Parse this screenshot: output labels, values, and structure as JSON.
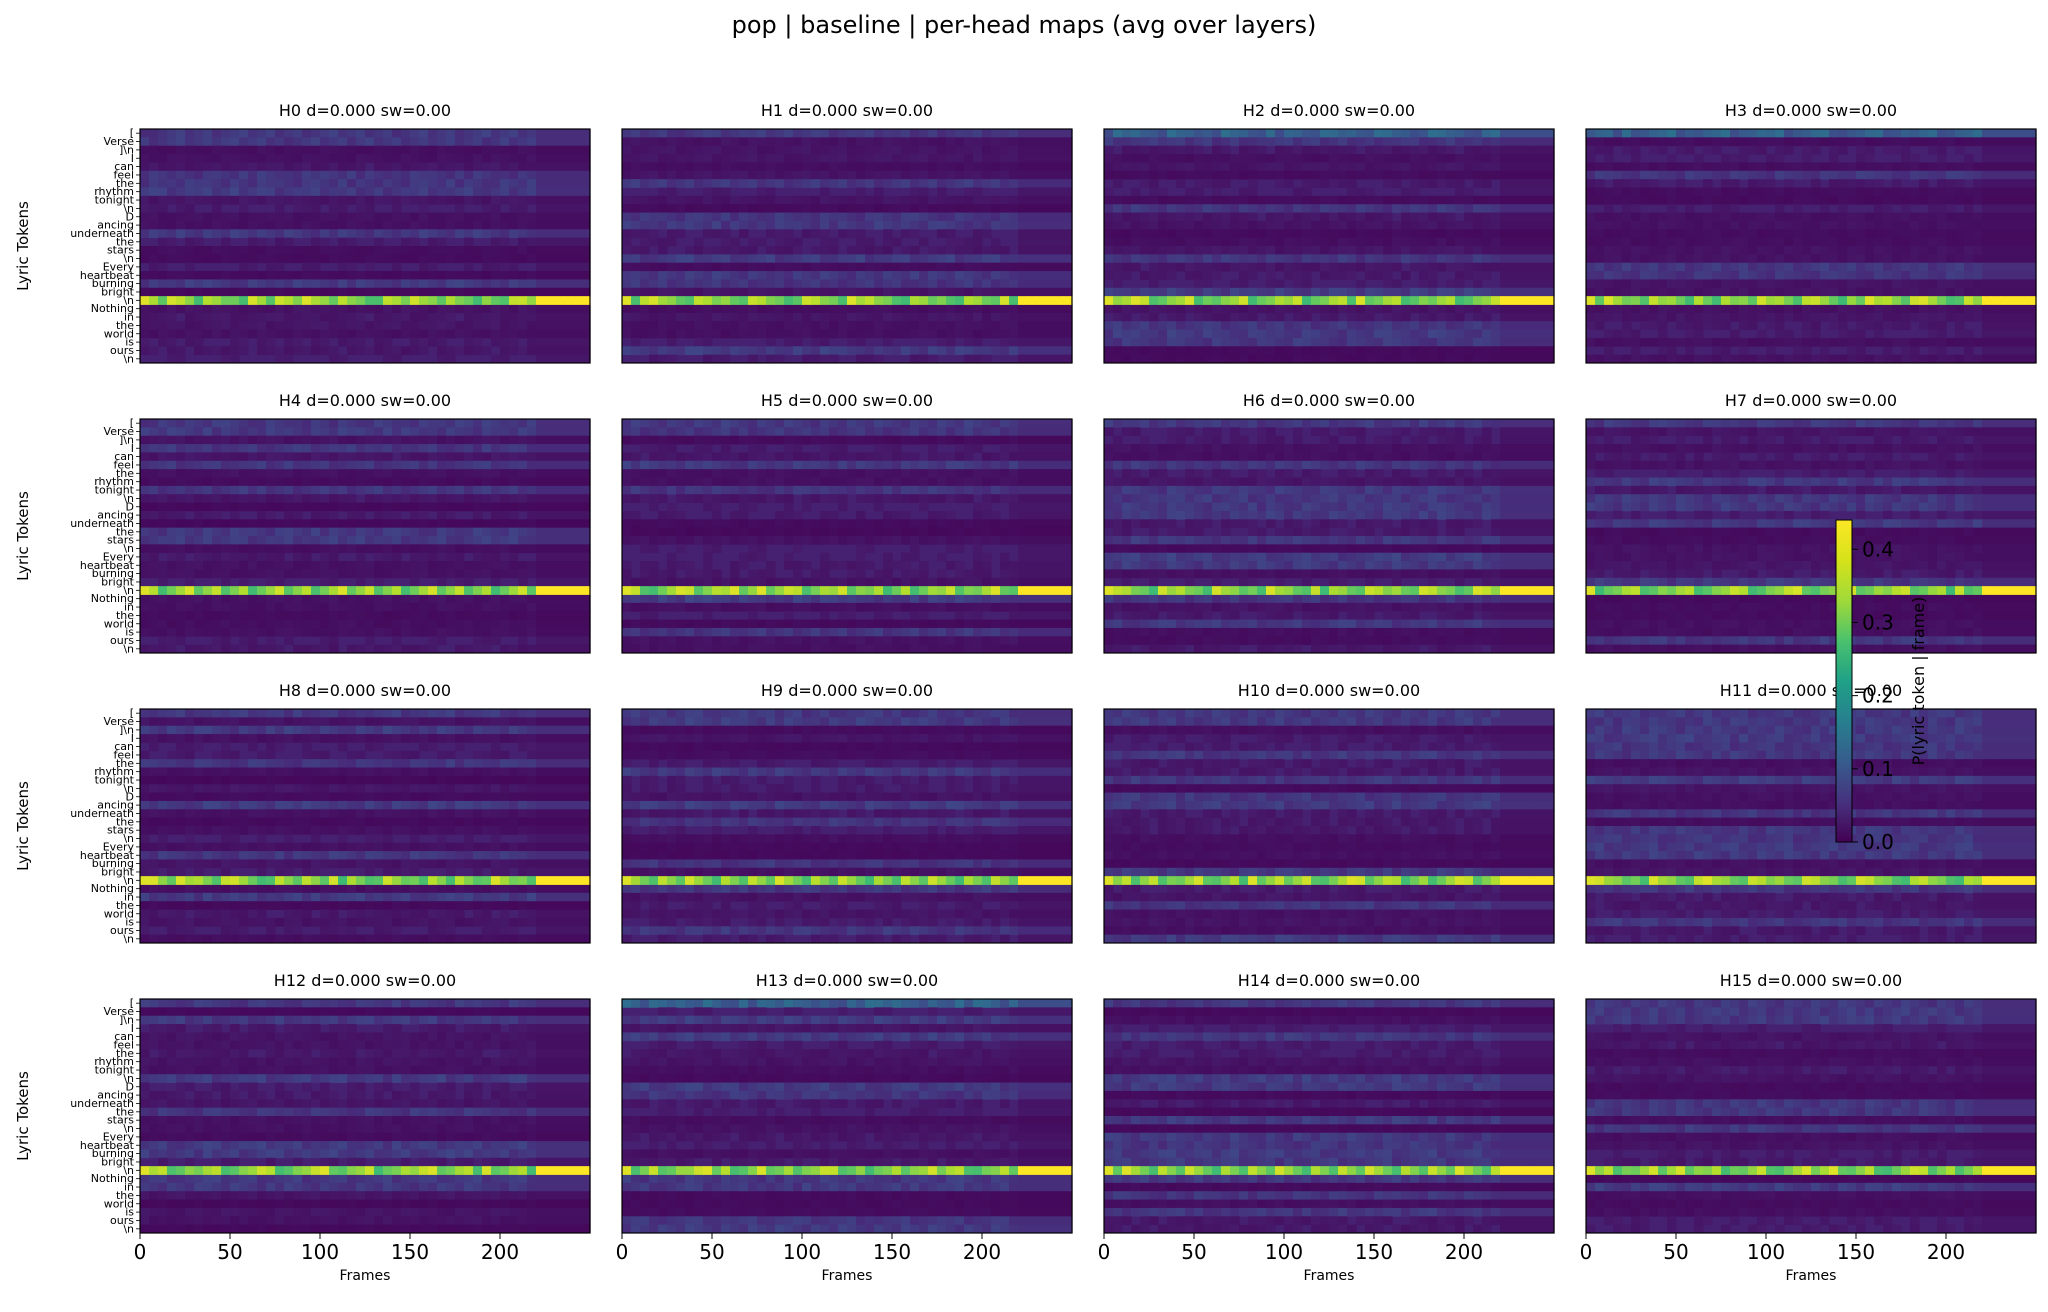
{
  "figure": {
    "title": "pop | baseline | per-head maps (avg over layers)"
  },
  "chart_data": {
    "type": "heatmap",
    "title": "pop | baseline | per-head maps (avg over layers)",
    "xlabel": "Frames",
    "ylabel": "Lyric Tokens",
    "x_ticks": [
      "0",
      "50",
      "100",
      "150",
      "200"
    ],
    "x_range": [
      0,
      250
    ],
    "frames_with_audio": 220,
    "y_tick_labels": [
      "[",
      "Verse",
      "]\\n",
      "I",
      "can",
      "feel",
      "the",
      "rhythm",
      "tonight",
      "\\n",
      "D",
      "ancing",
      "underneath",
      "the",
      "stars",
      "\\n",
      "Every",
      "heartbeat",
      "burning",
      "bright",
      "\\n",
      "Nothing",
      "in",
      "the",
      "world",
      "is",
      "ours",
      "\\n"
    ],
    "colorbar": {
      "label": "P(lyric token | frame)",
      "range": [
        0,
        0.44
      ],
      "ticks": [
        "0.0",
        "0.1",
        "0.2",
        "0.3",
        "0.4"
      ],
      "colormap": "viridis"
    },
    "dominant_token_index": 20,
    "dominant_token_mean": 0.42,
    "panels": [
      {
        "title": "H0 d=0.000 sw=0.00",
        "head": 0
      },
      {
        "title": "H1 d=0.000 sw=0.00",
        "head": 1
      },
      {
        "title": "H2 d=0.000 sw=0.00",
        "head": 2
      },
      {
        "title": "H3 d=0.000 sw=0.00",
        "head": 3
      },
      {
        "title": "H4 d=0.000 sw=0.00",
        "head": 4
      },
      {
        "title": "H5 d=0.000 sw=0.00",
        "head": 5
      },
      {
        "title": "H6 d=0.000 sw=0.00",
        "head": 6
      },
      {
        "title": "H7 d=0.000 sw=0.00",
        "head": 7
      },
      {
        "title": "H8 d=0.000 sw=0.00",
        "head": 8
      },
      {
        "title": "H9 d=0.000 sw=0.00",
        "head": 9
      },
      {
        "title": "H10 d=0.000 sw=0.00",
        "head": 10
      },
      {
        "title": "H11 d=0.000 sw=0.00",
        "head": 11
      },
      {
        "title": "H12 d=0.000 sw=0.00",
        "head": 12
      },
      {
        "title": "H13 d=0.000 sw=0.00",
        "head": 13
      },
      {
        "title": "H14 d=0.000 sw=0.00",
        "head": 14
      },
      {
        "title": "H15 d=0.000 sw=0.00",
        "head": 15
      }
    ]
  }
}
